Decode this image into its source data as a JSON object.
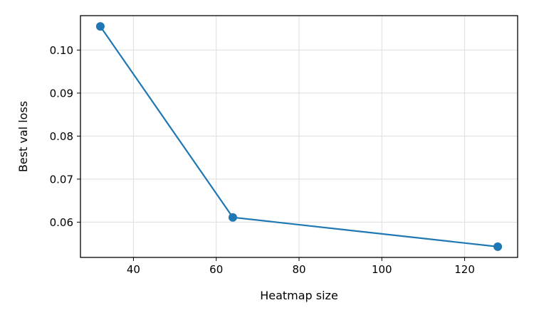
{
  "chart_data": {
    "type": "line",
    "title": "",
    "xlabel": "Heatmap size",
    "ylabel": "Best val loss",
    "xlim": [
      27.2,
      132.8
    ],
    "ylim": [
      0.0518,
      0.108
    ],
    "xticks": [
      40,
      60,
      80,
      100,
      120
    ],
    "yticks": [
      0.06,
      0.07,
      0.08,
      0.09,
      0.1
    ],
    "x_tick_labels": [
      "40",
      "60",
      "80",
      "100",
      "120"
    ],
    "y_tick_labels": [
      "0.06",
      "0.07",
      "0.08",
      "0.09",
      "0.10"
    ],
    "grid": true,
    "legend": "none",
    "series": [
      {
        "x": [
          32,
          64,
          128
        ],
        "y": [
          0.1055,
          0.0611,
          0.0543
        ],
        "color": "#1f77b4",
        "marker": "circle"
      }
    ]
  }
}
